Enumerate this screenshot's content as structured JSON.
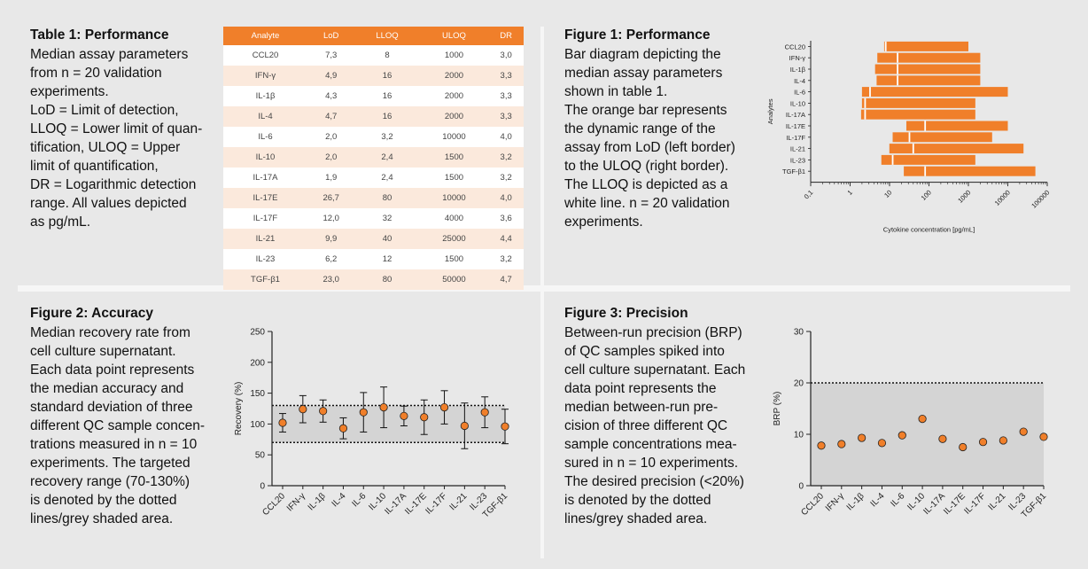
{
  "sections": {
    "table1": {
      "title": "Table 1: Performance",
      "lines": [
        "Median assay parameters",
        "from n = 20 validation",
        "experiments.",
        "LoD = Limit of detection,",
        "LLOQ = Lower limit of quan-",
        "tification, ULOQ = Upper",
        "limit of quantification,",
        "DR = Logarithmic detection",
        "range. All values depicted",
        "as pg/mL."
      ]
    },
    "figure1": {
      "title": "Figure 1: Performance",
      "lines": [
        "Bar diagram depicting the",
        "median assay parameters",
        "shown in table 1.",
        "The orange bar represents",
        "the dynamic range of the",
        "assay from LoD (left border)",
        "to the ULOQ (right border).",
        "The LLOQ is depicted as a",
        "white line. n = 20 validation",
        "experiments."
      ]
    },
    "figure2": {
      "title": "Figure 2: Accuracy",
      "lines": [
        "Median recovery rate from",
        "cell culture supernatant.",
        "Each data point represents",
        "the median accuracy and",
        "standard deviation of three",
        "different QC sample concen-",
        "trations measured in n = 10",
        "experiments. The targeted",
        "recovery range (70-130%)",
        "is denoted by the dotted",
        "lines/grey shaded area."
      ]
    },
    "figure3": {
      "title": "Figure 3: Precision",
      "lines": [
        "Between-run precision (BRP)",
        "of QC samples spiked into",
        "cell culture supernatant. Each",
        "data point represents the",
        "median between-run pre-",
        "cision of three different QC",
        "sample concentrations mea-",
        "sured in n = 10 experiments.",
        "The desired precision (<20%)",
        "is denoted by the dotted",
        "lines/grey shaded area."
      ]
    }
  },
  "colors": {
    "orange": "#f07f2a",
    "table_stripe": "#fbe9dc",
    "shade": "#d4d4d4",
    "background": "#e8e8e8"
  },
  "table": {
    "headers": [
      "Analyte",
      "LoD",
      "LLOQ",
      "ULOQ",
      "DR"
    ],
    "rows": [
      [
        "CCL20",
        "7,3",
        "8",
        "1000",
        "3,0"
      ],
      [
        "IFN-γ",
        "4,9",
        "16",
        "2000",
        "3,3"
      ],
      [
        "IL-1β",
        "4,3",
        "16",
        "2000",
        "3,3"
      ],
      [
        "IL-4",
        "4,7",
        "16",
        "2000",
        "3,3"
      ],
      [
        "IL-6",
        "2,0",
        "3,2",
        "10000",
        "4,0"
      ],
      [
        "IL-10",
        "2,0",
        "2,4",
        "1500",
        "3,2"
      ],
      [
        "IL-17A",
        "1,9",
        "2,4",
        "1500",
        "3,2"
      ],
      [
        "IL-17E",
        "26,7",
        "80",
        "10000",
        "4,0"
      ],
      [
        "IL-17F",
        "12,0",
        "32",
        "4000",
        "3,6"
      ],
      [
        "IL-21",
        "9,9",
        "40",
        "25000",
        "4,4"
      ],
      [
        "IL-23",
        "6,2",
        "12",
        "1500",
        "3,2"
      ],
      [
        "TGF-β1",
        "23,0",
        "80",
        "50000",
        "4,7"
      ]
    ]
  },
  "chart_data": [
    {
      "type": "bar",
      "orientation": "horizontal-floating",
      "ylabel": "Analytes",
      "xlabel": "Cytokine concentration [pg/mL]",
      "xscale": "log",
      "xlim": [
        0.1,
        100000
      ],
      "xticks": [
        "0,1",
        "1",
        "10",
        "100",
        "1000",
        "10000",
        "100000"
      ],
      "categories": [
        "CCL20",
        "IFN-γ",
        "IL-1β",
        "IL-4",
        "IL-6",
        "IL-10",
        "IL-17A",
        "IL-17E",
        "IL-17F",
        "IL-21",
        "IL-23",
        "TGF-β1"
      ],
      "lod": [
        7.3,
        4.9,
        4.3,
        4.7,
        2.0,
        2.0,
        1.9,
        26.7,
        12.0,
        9.9,
        6.2,
        23.0
      ],
      "lloq": [
        8,
        16,
        16,
        16,
        3.2,
        2.4,
        2.4,
        80,
        32,
        40,
        12,
        80
      ],
      "uloq": [
        1000,
        2000,
        2000,
        2000,
        10000,
        1500,
        1500,
        10000,
        4000,
        25000,
        1500,
        50000
      ]
    },
    {
      "type": "scatter",
      "ylabel": "Recovery (%)",
      "ylim": [
        0,
        250
      ],
      "yticks": [
        0,
        50,
        100,
        150,
        200,
        250
      ],
      "shaded_range": [
        70,
        130
      ],
      "categories": [
        "CCL20",
        "IFN-γ",
        "IL-1β",
        "IL-4",
        "IL-6",
        "IL-10",
        "IL-17A",
        "IL-17E",
        "IL-17F",
        "IL-21",
        "IL-23",
        "TGF-β1"
      ],
      "values": [
        102,
        124,
        121,
        93,
        119,
        127,
        113,
        111,
        127,
        97,
        119,
        96
      ],
      "errors": [
        15,
        22,
        18,
        17,
        32,
        33,
        16,
        28,
        27,
        37,
        25,
        28
      ]
    },
    {
      "type": "scatter",
      "ylabel": "BRP (%)",
      "ylim": [
        0,
        30
      ],
      "yticks": [
        0,
        10,
        20,
        30
      ],
      "threshold": 20,
      "categories": [
        "CCL20",
        "IFN-γ",
        "IL-1β",
        "IL-4",
        "IL-6",
        "IL-10",
        "IL-17A",
        "IL-17E",
        "IL-17F",
        "IL-21",
        "IL-23",
        "TGF-β1"
      ],
      "values": [
        7.8,
        8.1,
        9.3,
        8.3,
        9.8,
        13.0,
        9.1,
        7.5,
        8.5,
        8.8,
        10.5,
        9.5
      ]
    }
  ]
}
